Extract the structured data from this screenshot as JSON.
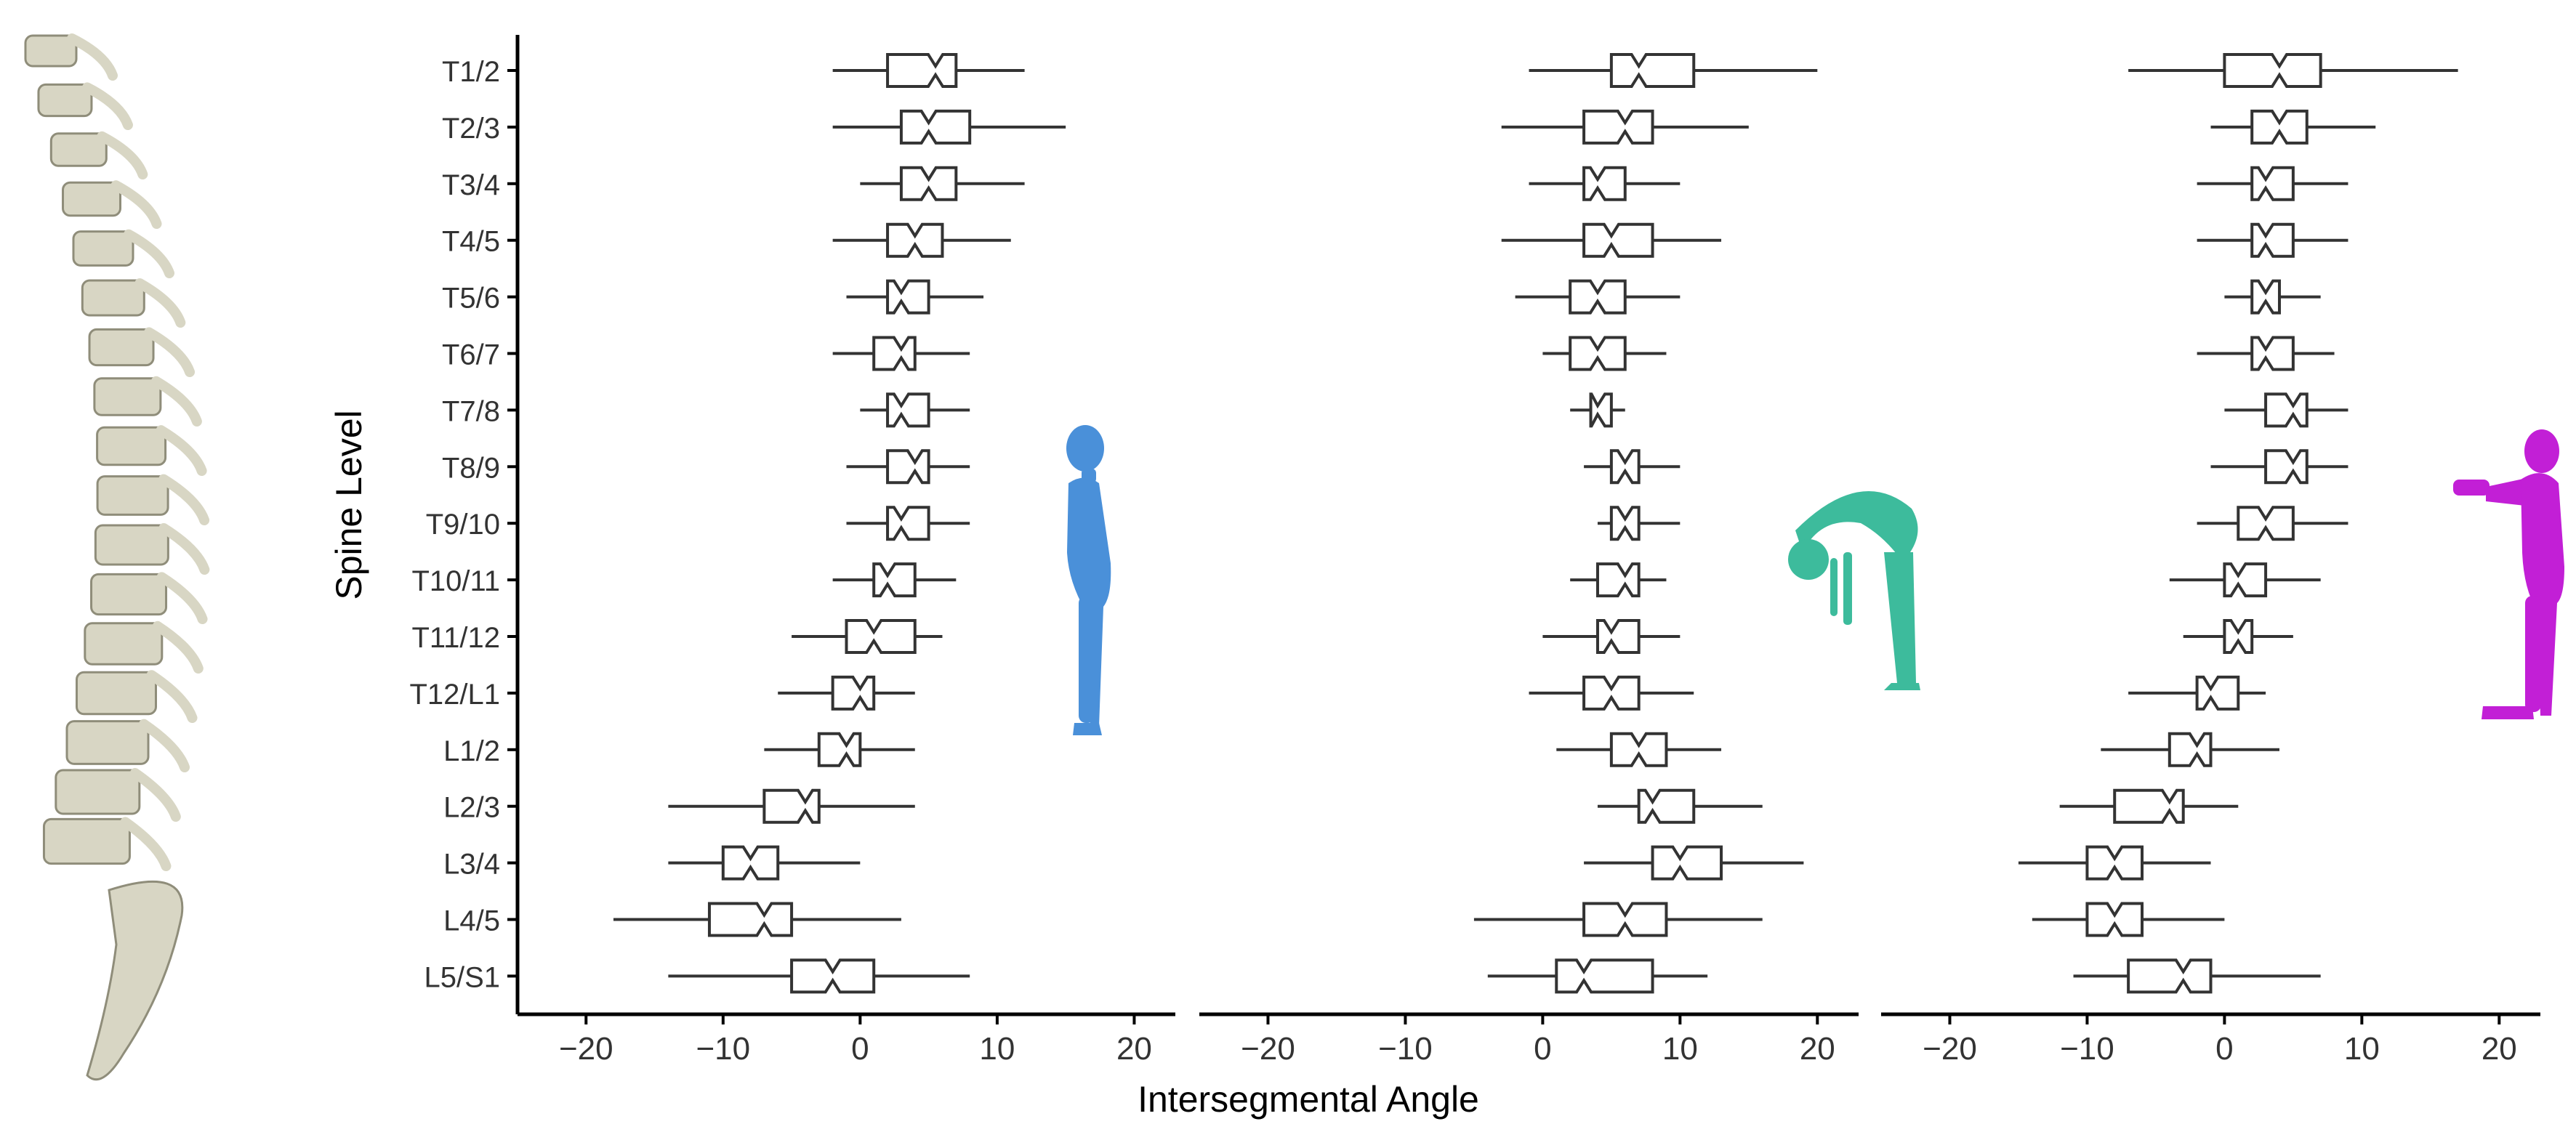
{
  "figure": {
    "spine_illustration": {
      "icon": "spine-illustration",
      "color": "#d8d6c4"
    },
    "posture_icons": [
      {
        "name": "standing-figure-icon",
        "color": "#4a90d9"
      },
      {
        "name": "forward-bend-figure-icon",
        "color": "#3dbb9c"
      },
      {
        "name": "arms-extended-figure-icon",
        "color": "#c21fd6"
      }
    ]
  },
  "chart_data": {
    "type": "boxplot",
    "ylabel": "Spine Level",
    "xlabel": "Intersegmental Angle",
    "xlim": [
      -25,
      23
    ],
    "xticks": [
      -20,
      -10,
      0,
      10,
      20
    ],
    "grid": false,
    "categories": [
      "T1/2",
      "T2/3",
      "T3/4",
      "T4/5",
      "T5/6",
      "T6/7",
      "T7/8",
      "T8/9",
      "T9/10",
      "T10/11",
      "T11/12",
      "T12/L1",
      "L1/2",
      "L2/3",
      "L3/4",
      "L4/5",
      "L5/S1"
    ],
    "panels": [
      {
        "boxes": [
          {
            "min": -2,
            "q1": 2,
            "median": 5.5,
            "q3": 7,
            "max": 12
          },
          {
            "min": -2,
            "q1": 3,
            "median": 5,
            "q3": 8,
            "max": 15
          },
          {
            "min": 0,
            "q1": 3,
            "median": 5,
            "q3": 7,
            "max": 12
          },
          {
            "min": -2,
            "q1": 2,
            "median": 4,
            "q3": 6,
            "max": 11
          },
          {
            "min": -1,
            "q1": 2,
            "median": 3,
            "q3": 5,
            "max": 9
          },
          {
            "min": -2,
            "q1": 1,
            "median": 3,
            "q3": 4,
            "max": 8
          },
          {
            "min": 0,
            "q1": 2,
            "median": 3,
            "q3": 5,
            "max": 8
          },
          {
            "min": -1,
            "q1": 2,
            "median": 4,
            "q3": 5,
            "max": 8
          },
          {
            "min": -1,
            "q1": 2,
            "median": 3,
            "q3": 5,
            "max": 8
          },
          {
            "min": -2,
            "q1": 1,
            "median": 2,
            "q3": 4,
            "max": 7
          },
          {
            "min": -5,
            "q1": -1,
            "median": 1,
            "q3": 4,
            "max": 6
          },
          {
            "min": -6,
            "q1": -2,
            "median": 0,
            "q3": 1,
            "max": 4
          },
          {
            "min": -7,
            "q1": -3,
            "median": -1,
            "q3": 0,
            "max": 4
          },
          {
            "min": -14,
            "q1": -7,
            "median": -4,
            "q3": -3,
            "max": 4
          },
          {
            "min": -14,
            "q1": -10,
            "median": -8,
            "q3": -6,
            "max": 0
          },
          {
            "min": -18,
            "q1": -11,
            "median": -7,
            "q3": -5,
            "max": 3
          },
          {
            "min": -14,
            "q1": -5,
            "median": -2,
            "q3": 1,
            "max": 8
          }
        ]
      },
      {
        "boxes": [
          {
            "min": -1,
            "q1": 5,
            "median": 7,
            "q3": 11,
            "max": 20
          },
          {
            "min": -3,
            "q1": 3,
            "median": 6,
            "q3": 8,
            "max": 15
          },
          {
            "min": -1,
            "q1": 3,
            "median": 4,
            "q3": 6,
            "max": 10
          },
          {
            "min": -3,
            "q1": 3,
            "median": 5,
            "q3": 8,
            "max": 13
          },
          {
            "min": -2,
            "q1": 2,
            "median": 4,
            "q3": 6,
            "max": 10
          },
          {
            "min": 0,
            "q1": 2,
            "median": 4,
            "q3": 6,
            "max": 9
          },
          {
            "min": 2,
            "q1": 3.5,
            "median": 4,
            "q3": 5,
            "max": 6
          },
          {
            "min": 3,
            "q1": 5,
            "median": 6,
            "q3": 7,
            "max": 10
          },
          {
            "min": 4,
            "q1": 5,
            "median": 6,
            "q3": 7,
            "max": 10
          },
          {
            "min": 2,
            "q1": 4,
            "median": 6,
            "q3": 7,
            "max": 9
          },
          {
            "min": 0,
            "q1": 4,
            "median": 5,
            "q3": 7,
            "max": 10
          },
          {
            "min": -1,
            "q1": 3,
            "median": 5,
            "q3": 7,
            "max": 11
          },
          {
            "min": 1,
            "q1": 5,
            "median": 7,
            "q3": 9,
            "max": 13
          },
          {
            "min": 4,
            "q1": 7,
            "median": 8,
            "q3": 11,
            "max": 16
          },
          {
            "min": 3,
            "q1": 8,
            "median": 10,
            "q3": 13,
            "max": 19
          },
          {
            "min": -5,
            "q1": 3,
            "median": 6,
            "q3": 9,
            "max": 16
          },
          {
            "min": -4,
            "q1": 1,
            "median": 3,
            "q3": 8,
            "max": 12
          }
        ]
      },
      {
        "boxes": [
          {
            "min": -7,
            "q1": 0,
            "median": 4,
            "q3": 7,
            "max": 17
          },
          {
            "min": -1,
            "q1": 2,
            "median": 4,
            "q3": 6,
            "max": 11
          },
          {
            "min": -2,
            "q1": 2,
            "median": 3,
            "q3": 5,
            "max": 9
          },
          {
            "min": -2,
            "q1": 2,
            "median": 3,
            "q3": 5,
            "max": 9
          },
          {
            "min": 0,
            "q1": 2,
            "median": 3,
            "q3": 4,
            "max": 7
          },
          {
            "min": -2,
            "q1": 2,
            "median": 3,
            "q3": 5,
            "max": 8
          },
          {
            "min": 0,
            "q1": 3,
            "median": 5,
            "q3": 6,
            "max": 9
          },
          {
            "min": -1,
            "q1": 3,
            "median": 5,
            "q3": 6,
            "max": 9
          },
          {
            "min": -2,
            "q1": 1,
            "median": 3,
            "q3": 5,
            "max": 9
          },
          {
            "min": -4,
            "q1": 0,
            "median": 1,
            "q3": 3,
            "max": 7
          },
          {
            "min": -3,
            "q1": 0,
            "median": 1,
            "q3": 2,
            "max": 5
          },
          {
            "min": -7,
            "q1": -2,
            "median": -1,
            "q3": 1,
            "max": 3
          },
          {
            "min": -9,
            "q1": -4,
            "median": -2,
            "q3": -1,
            "max": 4
          },
          {
            "min": -12,
            "q1": -8,
            "median": -4,
            "q3": -3,
            "max": 1
          },
          {
            "min": -15,
            "q1": -10,
            "median": -8,
            "q3": -6,
            "max": -1
          },
          {
            "min": -14,
            "q1": -10,
            "median": -8,
            "q3": -6,
            "max": 0
          },
          {
            "min": -11,
            "q1": -7,
            "median": -3,
            "q3": -1,
            "max": 7
          }
        ]
      }
    ]
  }
}
